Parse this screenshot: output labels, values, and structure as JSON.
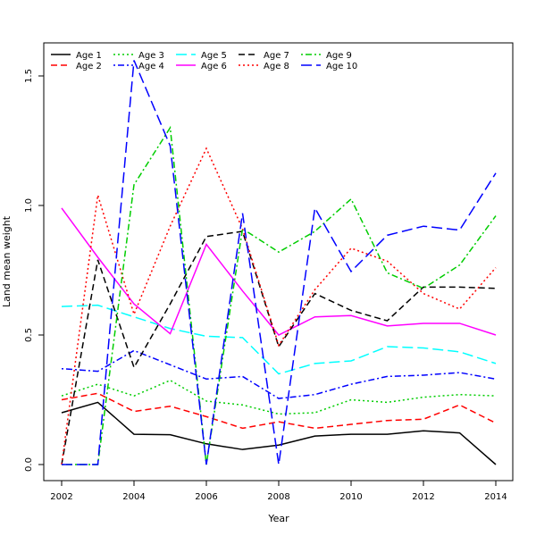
{
  "chart_data": {
    "type": "line",
    "title": "",
    "xlabel": "Year",
    "ylabel": "Land mean weight",
    "xlim": [
      2001.5,
      2014.5
    ],
    "ylim": [
      -0.06,
      1.63
    ],
    "xticks": [
      2002,
      2004,
      2006,
      2008,
      2010,
      2012,
      2014
    ],
    "yticks": [
      0.0,
      0.5,
      1.0,
      1.5
    ],
    "ytick_labels": [
      "0.0",
      "0.5",
      "1.0",
      "1.5"
    ],
    "grid": false,
    "legend_position": "top-left",
    "x": [
      2002,
      2003,
      2004,
      2005,
      2006,
      2007,
      2008,
      2009,
      2010,
      2011,
      2012,
      2013,
      2014
    ],
    "series": [
      {
        "name": "Age 1",
        "color": "#000000",
        "dash": "solid",
        "values": [
          0.2,
          0.24,
          0.117,
          0.115,
          0.08,
          0.058,
          0.075,
          0.11,
          0.117,
          0.117,
          0.13,
          0.122,
          0.0
        ]
      },
      {
        "name": "Age 2",
        "color": "#ff0000",
        "dash": "dashed",
        "values": [
          0.25,
          0.275,
          0.205,
          0.225,
          0.185,
          0.14,
          0.165,
          0.14,
          0.155,
          0.17,
          0.175,
          0.23,
          0.16
        ]
      },
      {
        "name": "Age 3",
        "color": "#00cd00",
        "dash": "dotted",
        "values": [
          0.265,
          0.31,
          0.265,
          0.325,
          0.245,
          0.23,
          0.195,
          0.2,
          0.25,
          0.24,
          0.26,
          0.27,
          0.265
        ]
      },
      {
        "name": "Age 4",
        "color": "#0000ff",
        "dash": "dotdash",
        "values": [
          0.37,
          0.36,
          0.44,
          0.385,
          0.33,
          0.34,
          0.255,
          0.27,
          0.31,
          0.34,
          0.345,
          0.355,
          0.33
        ]
      },
      {
        "name": "Age 5",
        "color": "#00ffff",
        "dash": "longdash",
        "values": [
          0.61,
          0.615,
          0.57,
          0.525,
          0.495,
          0.49,
          0.35,
          0.39,
          0.4,
          0.455,
          0.45,
          0.435,
          0.39
        ]
      },
      {
        "name": "Age 6",
        "color": "#ff00ff",
        "dash": "solid",
        "values": [
          0.99,
          0.8,
          0.62,
          0.505,
          0.85,
          0.67,
          0.5,
          0.57,
          0.575,
          0.535,
          0.545,
          0.545,
          0.5
        ]
      },
      {
        "name": "Age 7",
        "color": "#000000",
        "dash": "dashed",
        "values": [
          0.0,
          0.79,
          0.375,
          0.62,
          0.88,
          0.9,
          0.455,
          0.66,
          0.595,
          0.555,
          0.685,
          0.685,
          0.68
        ]
      },
      {
        "name": "Age 8",
        "color": "#ff0000",
        "dash": "dotted",
        "values": [
          0.0,
          1.04,
          0.58,
          0.92,
          1.22,
          0.91,
          0.46,
          0.675,
          0.835,
          0.785,
          0.66,
          0.6,
          0.76
        ]
      },
      {
        "name": "Age 9",
        "color": "#00cd00",
        "dash": "dotdash",
        "values": [
          0.0,
          0.0,
          1.08,
          1.3,
          0.0,
          0.91,
          0.82,
          0.9,
          1.025,
          0.74,
          0.68,
          0.77,
          0.96
        ]
      },
      {
        "name": "Age 10",
        "color": "#0000ff",
        "dash": "longdash",
        "values": [
          0.0,
          0.0,
          1.56,
          1.23,
          0.0,
          0.97,
          0.0,
          0.99,
          0.745,
          0.885,
          0.92,
          0.905,
          1.125
        ]
      }
    ]
  }
}
